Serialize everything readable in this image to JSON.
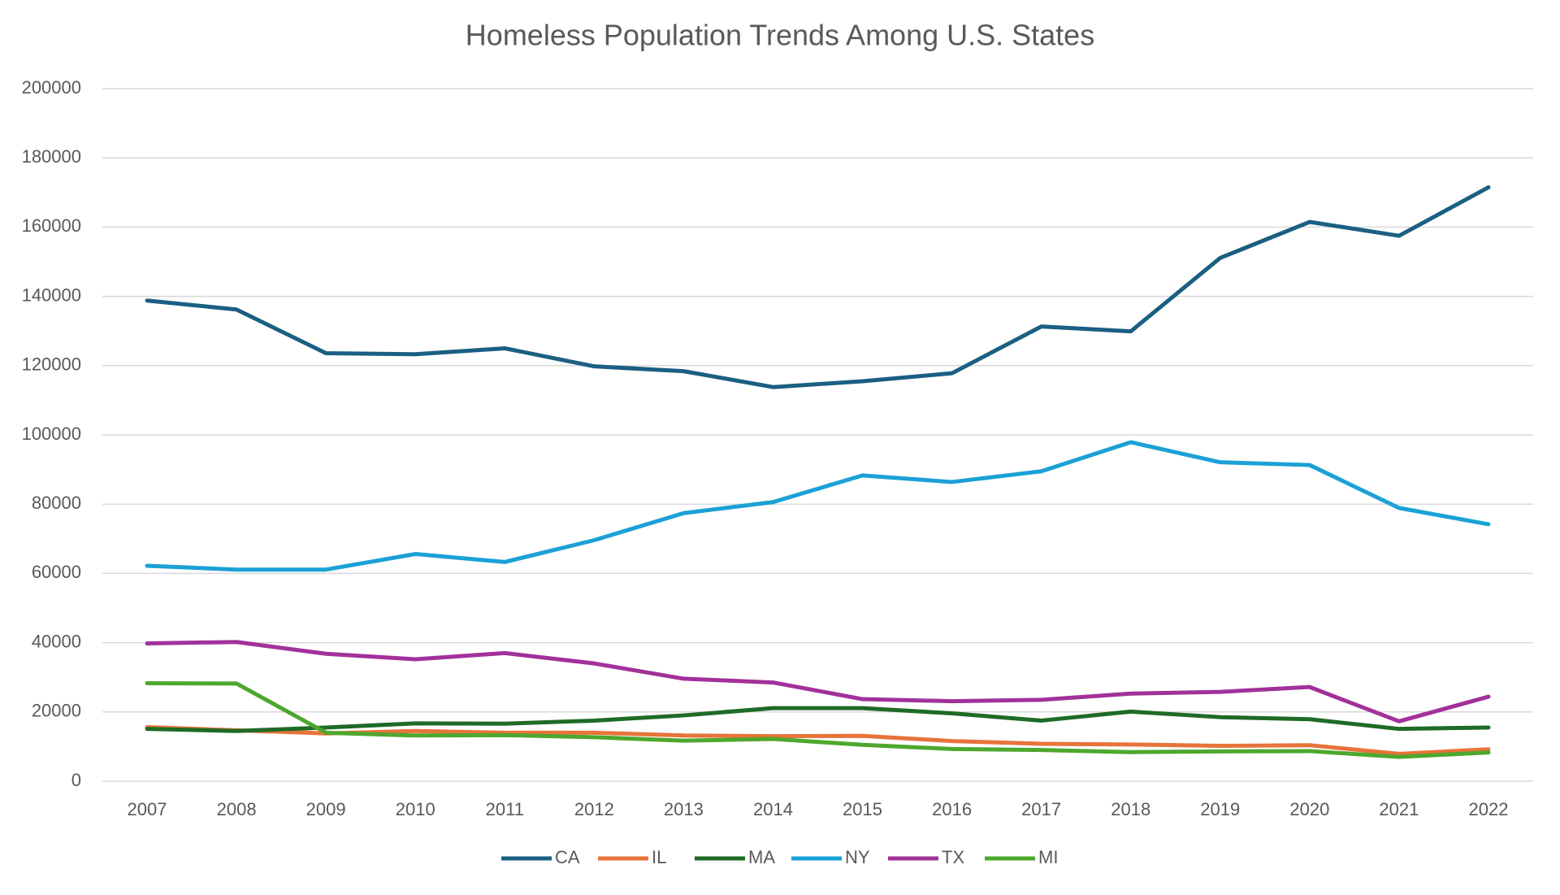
{
  "chart_data": {
    "type": "line",
    "title": "Homeless Population Trends Among U.S. States",
    "categories": [
      "2007",
      "2008",
      "2009",
      "2010",
      "2011",
      "2012",
      "2013",
      "2014",
      "2015",
      "2016",
      "2017",
      "2018",
      "2019",
      "2020",
      "2021",
      "2022"
    ],
    "series": [
      {
        "name": "CA",
        "color": "#1b5f82",
        "values": [
          138800,
          136200,
          123600,
          123300,
          125000,
          119800,
          118400,
          113800,
          115500,
          117800,
          131300,
          129900,
          151100,
          161500,
          157500,
          171500
        ]
      },
      {
        "name": "IL",
        "color": "#e8733a",
        "values": [
          15600,
          14700,
          13800,
          14500,
          14000,
          14000,
          13200,
          13000,
          13100,
          11600,
          10800,
          10600,
          10200,
          10400,
          7900,
          9200
        ]
      },
      {
        "name": "MA",
        "color": "#1e6b25",
        "values": [
          15100,
          14500,
          15500,
          16700,
          16600,
          17500,
          19000,
          21100,
          21100,
          19600,
          17500,
          20100,
          18500,
          17900,
          15100,
          15500
        ]
      },
      {
        "name": "NY",
        "color": "#1ba1d6",
        "values": [
          62200,
          61100,
          61100,
          65600,
          63300,
          69600,
          77400,
          80600,
          88300,
          86400,
          89500,
          97900,
          92100,
          91300,
          78900,
          74200
        ]
      },
      {
        "name": "TX",
        "color": "#a2319a",
        "values": [
          39800,
          40200,
          36800,
          35200,
          37000,
          34000,
          29600,
          28500,
          23700,
          23100,
          23500,
          25300,
          25800,
          27200,
          17300,
          24400
        ]
      },
      {
        "name": "MI",
        "color": "#4ea72e",
        "values": [
          28300,
          28200,
          14000,
          13200,
          13300,
          12700,
          11700,
          12200,
          10500,
          9300,
          9000,
          8400,
          8600,
          8700,
          7000,
          8300
        ]
      }
    ],
    "ylim": [
      0,
      200000
    ],
    "yticks": [
      0,
      20000,
      40000,
      60000,
      80000,
      100000,
      120000,
      140000,
      160000,
      180000,
      200000
    ],
    "grid": true,
    "legend": "bottom"
  }
}
